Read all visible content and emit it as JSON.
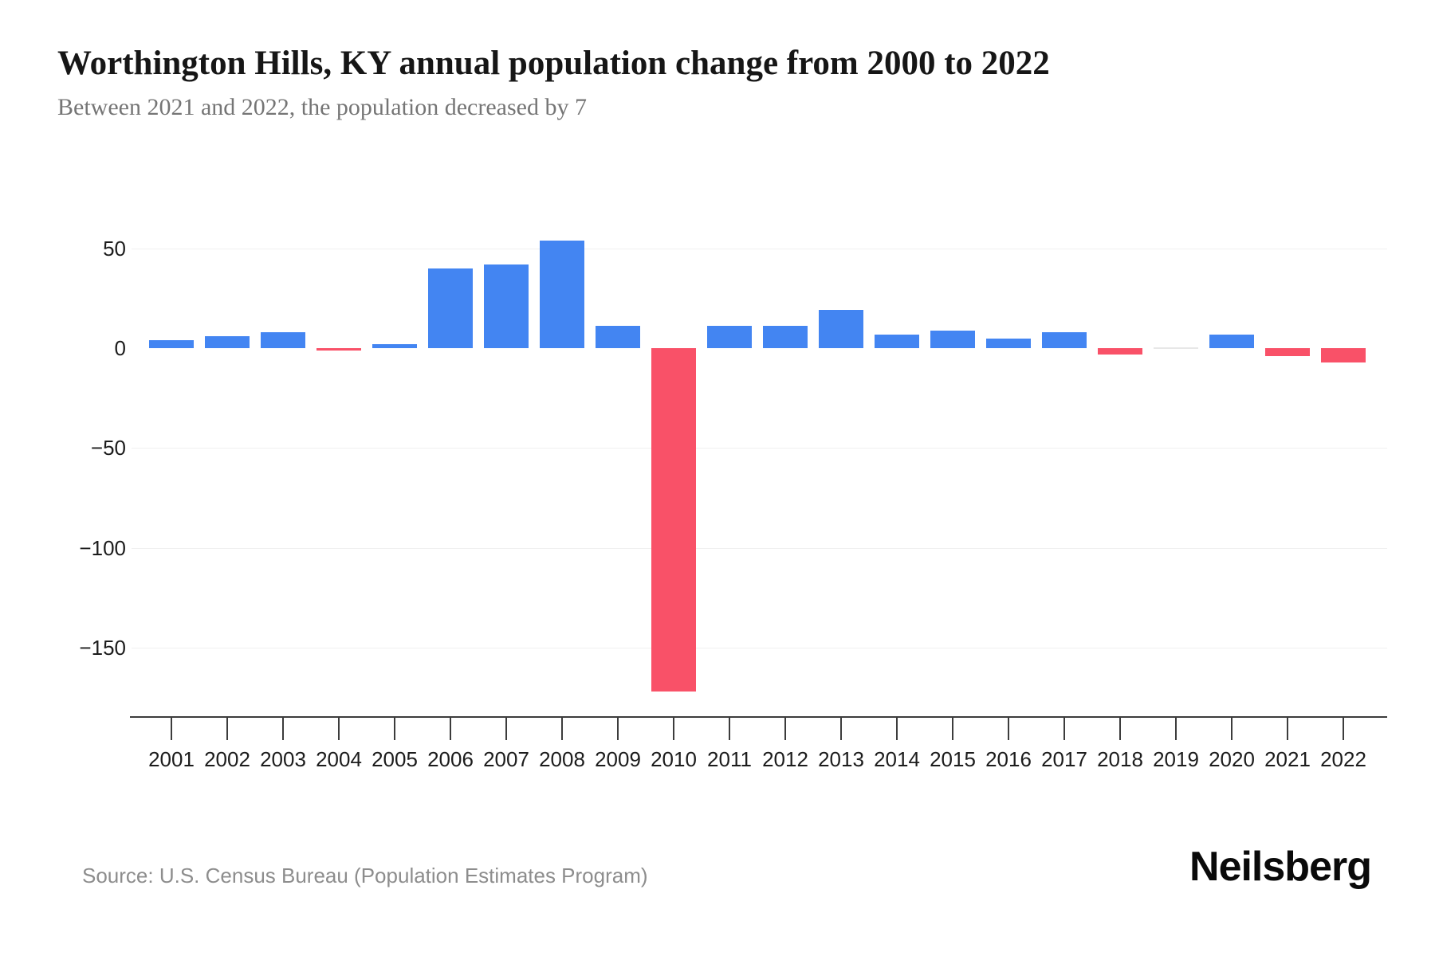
{
  "header": {
    "title": "Worthington Hills, KY annual population change from 2000 to 2022",
    "subtitle": "Between 2021 and 2022, the population decreased by 7"
  },
  "footer": {
    "source": "Source: U.S. Census Bureau (Population Estimates Program)",
    "brand": "Neilsberg"
  },
  "colors": {
    "positive": "#4385f2",
    "negative": "#f95168",
    "zero": "#e7e7e7",
    "gridline": "#f0f0f0",
    "axis": "#3c3c3c",
    "title_text": "#161616",
    "subtitle_text": "#757575",
    "source_text": "#8d8d8d"
  },
  "chart_data": {
    "type": "bar",
    "title": "Worthington Hills, KY annual population change from 2000 to 2022",
    "subtitle": "Between 2021 and 2022, the population decreased by 7",
    "xlabel": "",
    "ylabel": "",
    "categories": [
      "2001",
      "2002",
      "2003",
      "2004",
      "2005",
      "2006",
      "2007",
      "2008",
      "2009",
      "2010",
      "2011",
      "2012",
      "2013",
      "2014",
      "2015",
      "2016",
      "2017",
      "2018",
      "2019",
      "2020",
      "2021",
      "2022"
    ],
    "values": [
      4,
      6,
      8,
      -1,
      2,
      40,
      42,
      54,
      11,
      -172,
      11,
      11,
      19,
      7,
      9,
      5,
      8,
      -3,
      0,
      7,
      -4,
      -7
    ],
    "yticks": [
      {
        "label": "50",
        "value": 50
      },
      {
        "label": "0",
        "value": 0
      },
      {
        "label": "−50",
        "value": -50
      },
      {
        "label": "−100",
        "value": -100
      },
      {
        "label": "−150",
        "value": -150
      }
    ],
    "gridline_values": [
      50,
      -50,
      -100,
      -150
    ],
    "ylim": [
      -185,
      60
    ],
    "grid": "horizontal-light",
    "legend": "none",
    "color_rule": "positive bars blue, negative bars red, zero bars light gray"
  }
}
